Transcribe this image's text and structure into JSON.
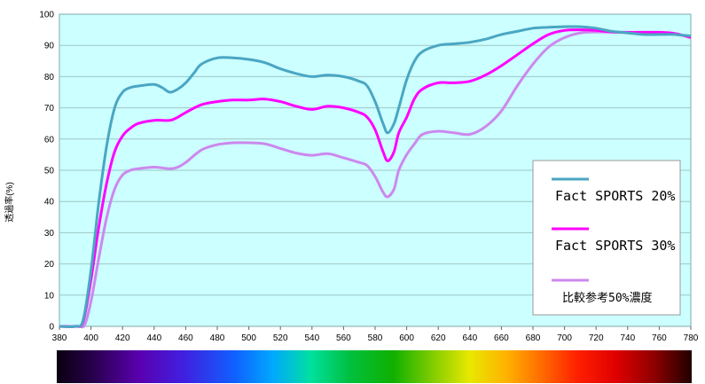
{
  "chart_data": {
    "type": "line",
    "ylabel": "透過率(%)",
    "xlim": [
      380,
      780
    ],
    "ylim": [
      0,
      100
    ],
    "x_ticks": [
      380,
      400,
      420,
      440,
      460,
      480,
      500,
      520,
      540,
      560,
      580,
      600,
      620,
      640,
      660,
      680,
      700,
      720,
      740,
      760,
      780
    ],
    "y_ticks": [
      0,
      10,
      20,
      30,
      40,
      50,
      60,
      70,
      80,
      90,
      100
    ],
    "grid": true,
    "legend_position": "right",
    "colors": {
      "plot_background": "#ccffff",
      "grid": "#9ec6c6",
      "fact20": "#4aa6c3",
      "fact30": "#ff00ff",
      "ref50": "#cc88ee"
    },
    "series": [
      {
        "name": "Fact SPORTS 20%",
        "color": "#4aa6c3",
        "x": [
          380,
          390,
          395,
          400,
          405,
          410,
          415,
          420,
          425,
          430,
          440,
          445,
          450,
          455,
          460,
          465,
          470,
          480,
          490,
          500,
          510,
          520,
          530,
          540,
          550,
          560,
          570,
          575,
          580,
          585,
          588,
          592,
          595,
          600,
          605,
          610,
          620,
          630,
          640,
          650,
          660,
          670,
          680,
          690,
          700,
          710,
          720,
          730,
          740,
          750,
          760,
          770,
          780
        ],
        "y": [
          0,
          0,
          2,
          18,
          40,
          58,
          70,
          75,
          76.5,
          77,
          77.5,
          76.5,
          75,
          76,
          78,
          81,
          84,
          86,
          86,
          85.5,
          84.5,
          82.5,
          81,
          80,
          80.5,
          80,
          78.5,
          77,
          72,
          65,
          62,
          65,
          70,
          79,
          85,
          88,
          90,
          90.5,
          91,
          92,
          93.5,
          94.5,
          95.5,
          95.8,
          96,
          96,
          95.5,
          94.5,
          94,
          93.5,
          93.5,
          93.5,
          93
        ]
      },
      {
        "name": "Fact SPORTS 30%",
        "color": "#ff00ff",
        "x": [
          380,
          390,
          395,
          400,
          405,
          410,
          415,
          420,
          425,
          430,
          440,
          450,
          455,
          460,
          470,
          480,
          490,
          500,
          510,
          520,
          530,
          540,
          550,
          560,
          570,
          575,
          580,
          585,
          588,
          592,
          595,
          600,
          605,
          610,
          620,
          630,
          640,
          650,
          660,
          670,
          680,
          690,
          700,
          710,
          720,
          730,
          740,
          750,
          760,
          770,
          780
        ],
        "y": [
          0,
          0,
          1.5,
          15,
          32,
          46,
          56,
          61,
          63.5,
          65,
          66,
          66,
          67,
          68.5,
          71,
          72,
          72.5,
          72.5,
          72.8,
          72,
          70.5,
          69.5,
          70.5,
          70,
          68.5,
          67,
          63,
          56,
          53,
          56,
          62,
          67,
          73,
          76,
          78,
          78,
          78.5,
          80.5,
          83.5,
          87,
          90.5,
          93.5,
          94.8,
          95,
          94.8,
          94.3,
          94.2,
          94.2,
          94.2,
          93.8,
          92.5
        ]
      },
      {
        "name": "比較参考50%濃度",
        "color": "#cc88ee",
        "x": [
          380,
          392,
          396,
          400,
          405,
          410,
          415,
          420,
          425,
          430,
          440,
          450,
          455,
          460,
          470,
          480,
          490,
          500,
          510,
          520,
          530,
          540,
          550,
          560,
          570,
          575,
          580,
          585,
          588,
          592,
          595,
          600,
          605,
          610,
          620,
          630,
          640,
          650,
          660,
          670,
          680,
          690,
          700,
          710,
          720,
          730,
          740,
          750,
          760,
          770,
          780
        ],
        "y": [
          0,
          0,
          0.5,
          8,
          22,
          35,
          44,
          48.5,
          50,
          50.5,
          51,
          50.5,
          51,
          52.5,
          56.5,
          58.2,
          58.8,
          58.8,
          58.5,
          57,
          55.5,
          54.8,
          55.3,
          54,
          52.5,
          51.5,
          48,
          43,
          41.5,
          44,
          50,
          55,
          58.5,
          61.5,
          62.5,
          62,
          61.5,
          64,
          69,
          77,
          84,
          89.5,
          92.5,
          94,
          94.3,
          94.3,
          94,
          93.8,
          93.8,
          93.5,
          92.8
        ]
      }
    ]
  }
}
